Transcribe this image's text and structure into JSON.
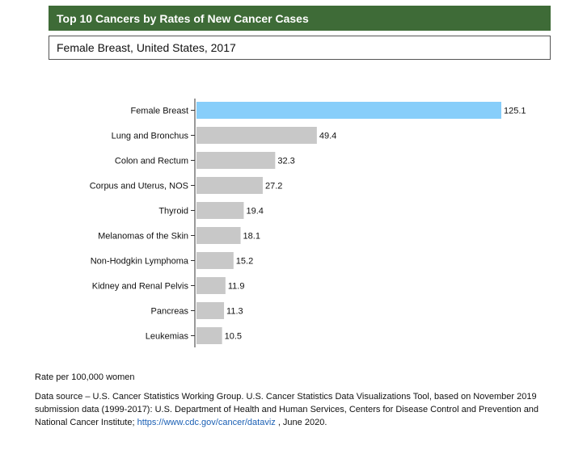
{
  "header": {
    "title": "Top 10 Cancers by Rates of New Cancer Cases",
    "subtitle": "Female Breast, United States, 2017"
  },
  "chart_data": {
    "type": "bar",
    "orientation": "horizontal",
    "categories": [
      "Female Breast",
      "Lung and Bronchus",
      "Colon and Rectum",
      "Corpus and Uterus, NOS",
      "Thyroid",
      "Melanomas of the Skin",
      "Non-Hodgkin Lymphoma",
      "Kidney and Renal Pelvis",
      "Pancreas",
      "Leukemias"
    ],
    "values": [
      125.1,
      49.4,
      32.3,
      27.2,
      19.4,
      18.1,
      15.2,
      11.9,
      11.3,
      10.5
    ],
    "value_labels": [
      "125.1",
      "49.4",
      "32.3",
      "27.2",
      "19.4",
      "18.1",
      "15.2",
      "11.9",
      "11.3",
      "10.5"
    ],
    "highlight_index": 0,
    "colors": {
      "highlight": "#87cefa",
      "default": "#c8c8c8",
      "axis": "#333333"
    },
    "xlim": [
      0,
      125.1
    ],
    "grid": false,
    "legend": "none"
  },
  "footer": {
    "unit_note": "Rate per 100,000 women",
    "source_text": "Data source – U.S. Cancer Statistics Working Group. U.S. Cancer Statistics Data Visualizations Tool, based on November 2019 submission data (1999-2017): U.S. Department of Health and Human Services, Centers for Disease Control and Prevention and National Cancer Institute; ",
    "source_link": "https://www.cdc.gov/cancer/dataviz",
    "source_suffix": " , June 2020."
  }
}
